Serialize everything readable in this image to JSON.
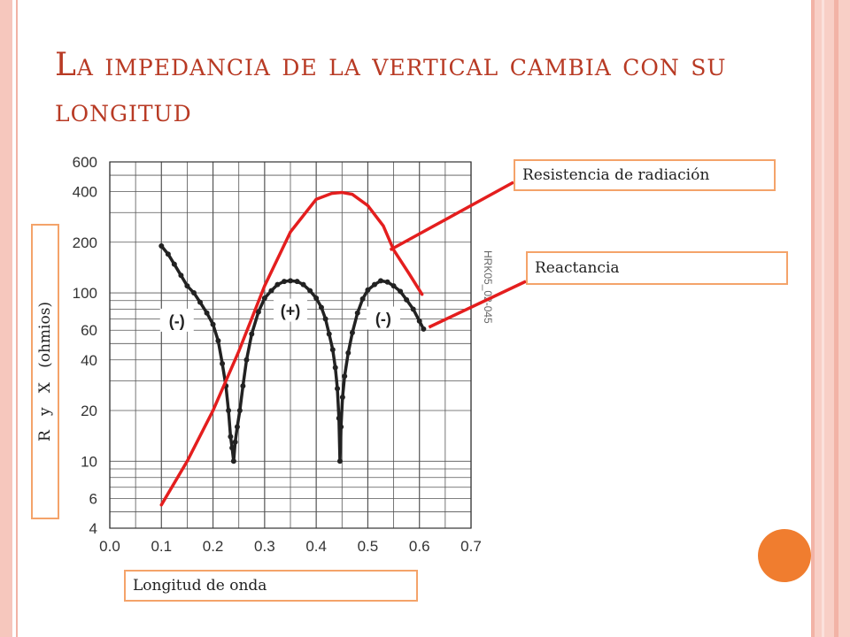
{
  "slide": {
    "title": "La impedancia de la vertical cambia con su longitud",
    "accent_color": "#b83a24",
    "callout_border_color": "#f4a36a",
    "dot_color": "#f07d2f"
  },
  "callouts": {
    "radiation": "Resistencia de radiación",
    "reactance": "Reactancia",
    "wavelength": "Longitud de onda",
    "ylabel": "R   y   X   (ohmios)"
  },
  "chart_data": {
    "type": "line",
    "y_scale": "log",
    "xlim": [
      0.0,
      0.7
    ],
    "ylim": [
      4,
      600
    ],
    "x_ticks": [
      "0.0",
      "0.1",
      "0.2",
      "0.3",
      "0.4",
      "0.5",
      "0.6",
      "0.7"
    ],
    "y_ticks": [
      "4",
      "6",
      "10",
      "20",
      "40",
      "60",
      "100",
      "200",
      "400",
      "600"
    ],
    "region_labels": [
      {
        "text": "(-)",
        "x": 0.13,
        "y": 68
      },
      {
        "text": "(+)",
        "x": 0.35,
        "y": 78
      },
      {
        "text": "(-)",
        "x": 0.53,
        "y": 70
      }
    ],
    "watermark": "HRK05_02-045",
    "series": [
      {
        "color": "#222222",
        "marker": "dot",
        "x": [
          0.1,
          0.113,
          0.125,
          0.138,
          0.15,
          0.163,
          0.175,
          0.188,
          0.2,
          0.21,
          0.218,
          0.225,
          0.23,
          0.234,
          0.237,
          0.24,
          0.243,
          0.247,
          0.252,
          0.258,
          0.265,
          0.275,
          0.288,
          0.3,
          0.313,
          0.325,
          0.338,
          0.35,
          0.363,
          0.375,
          0.388,
          0.4,
          0.41,
          0.418,
          0.425,
          0.432,
          0.437,
          0.441,
          0.444,
          0.446,
          0.448,
          0.451,
          0.455,
          0.462,
          0.47,
          0.48,
          0.49,
          0.5,
          0.513,
          0.525,
          0.538,
          0.55,
          0.563,
          0.575,
          0.588,
          0.6,
          0.608
        ],
        "y": [
          190,
          170,
          148,
          127,
          110,
          100,
          88,
          76,
          65,
          52,
          38,
          28,
          20,
          14,
          12,
          10,
          13,
          16,
          20,
          28,
          40,
          57,
          77,
          93,
          103,
          112,
          117,
          118,
          117,
          112,
          103,
          93,
          82,
          70,
          57,
          46,
          36,
          27,
          18,
          10,
          16,
          24,
          32,
          44,
          58,
          76,
          92,
          104,
          112,
          118,
          116,
          110,
          102,
          91,
          80,
          68,
          61
        ]
      },
      {
        "color": "#e41e1e",
        "marker": "none",
        "x": [
          0.1,
          0.15,
          0.2,
          0.25,
          0.3,
          0.35,
          0.4,
          0.43,
          0.45,
          0.47,
          0.5,
          0.53,
          0.55,
          0.58,
          0.605
        ],
        "y": [
          5.5,
          10,
          20,
          45,
          110,
          230,
          360,
          390,
          395,
          385,
          330,
          250,
          180,
          130,
          98
        ]
      }
    ]
  }
}
